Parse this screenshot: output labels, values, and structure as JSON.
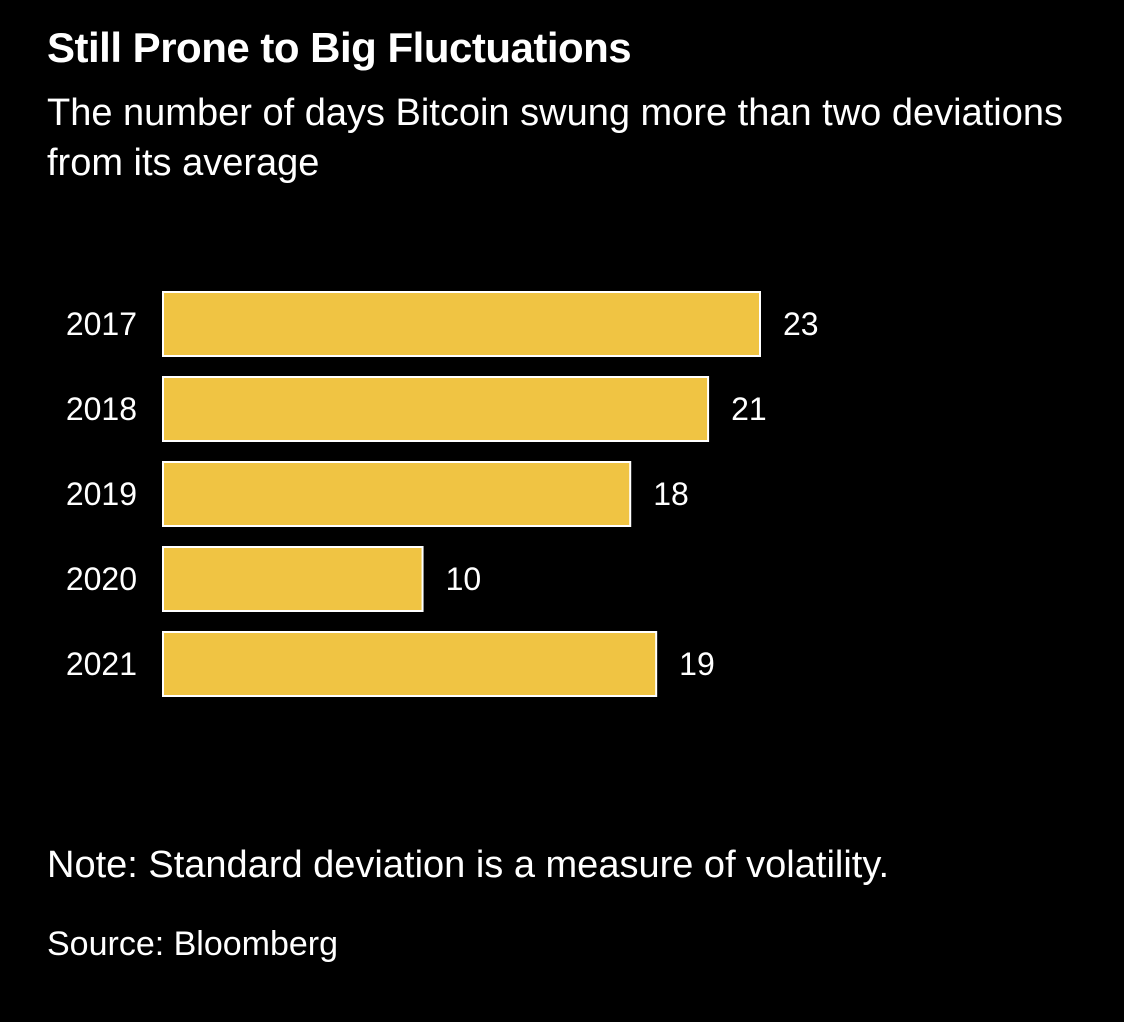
{
  "chart_data": {
    "type": "bar",
    "orientation": "horizontal",
    "title": "Still Prone to Big Fluctuations",
    "subtitle": "The number of days Bitcoin swung more than two deviations from its average",
    "categories": [
      "2017",
      "2018",
      "2019",
      "2020",
      "2021"
    ],
    "values": [
      23,
      21,
      18,
      10,
      19
    ],
    "data_labels": [
      "23",
      "21",
      "18",
      "10",
      "19"
    ],
    "xlim": [
      0,
      23
    ],
    "grid": false,
    "legend": "none",
    "bar_color": "#f0c443",
    "bar_border_color": "#ffffff",
    "note": "Note: Standard deviation is a measure of volatility.",
    "source": "Source: Bloomberg"
  }
}
